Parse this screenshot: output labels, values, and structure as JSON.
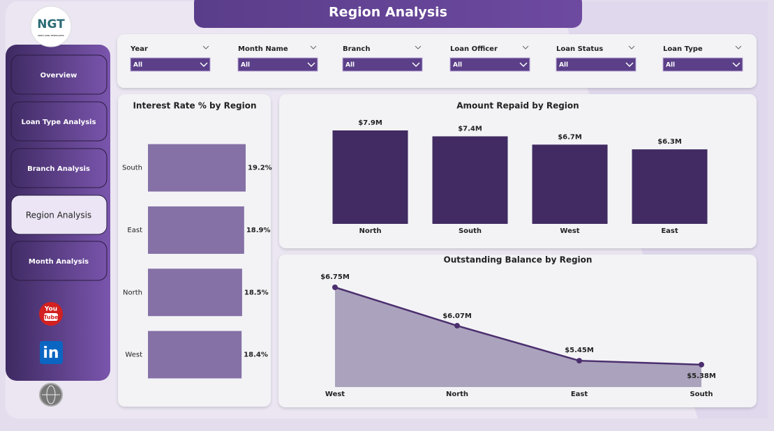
{
  "header": {
    "title": "Region Analysis",
    "logo": "NGT",
    "logo_tagline": "NEXT GEN TEMPLATES"
  },
  "nav": [
    "Overview",
    "Loan Type Analysis",
    "Branch Analysis",
    "Region Analysis",
    "Month Analysis"
  ],
  "social": {
    "youtube": [
      "You",
      "Tube"
    ],
    "linkedin": "in"
  },
  "filters": [
    {
      "label": "Year",
      "value": "All"
    },
    {
      "label": "Month Name",
      "value": "All"
    },
    {
      "label": "Branch",
      "value": "All"
    },
    {
      "label": "Loan Officer",
      "value": "All"
    },
    {
      "label": "Loan Status",
      "value": "All"
    },
    {
      "label": "Loan Type",
      "value": "All"
    }
  ],
  "chart_data": [
    {
      "type": "bar",
      "orientation": "horizontal",
      "title": "Interest Rate % by Region",
      "categories": [
        "South",
        "East",
        "North",
        "West"
      ],
      "values": [
        19.2,
        18.9,
        18.5,
        18.4
      ],
      "value_labels": [
        "19.2%",
        "18.9%",
        "18.5%",
        "18.4%"
      ],
      "color": "#8571a6"
    },
    {
      "type": "bar",
      "orientation": "vertical",
      "title": "Amount Repaid by Region",
      "categories": [
        "North",
        "South",
        "West",
        "East"
      ],
      "values": [
        7.9,
        7.4,
        6.7,
        6.3
      ],
      "value_labels": [
        "$7.9M",
        "$7.4M",
        "$6.7M",
        "$6.3M"
      ],
      "color": "#412b62"
    },
    {
      "type": "area",
      "title": "Outstanding Balance by Region",
      "categories": [
        "West",
        "North",
        "East",
        "South"
      ],
      "values": [
        6.75,
        6.07,
        5.45,
        5.38
      ],
      "value_labels": [
        "$6.75M",
        "$6.07M",
        "$5.45M",
        "$5.38M"
      ],
      "color": "#4b2f6e",
      "fill": "#aba3bd"
    }
  ]
}
